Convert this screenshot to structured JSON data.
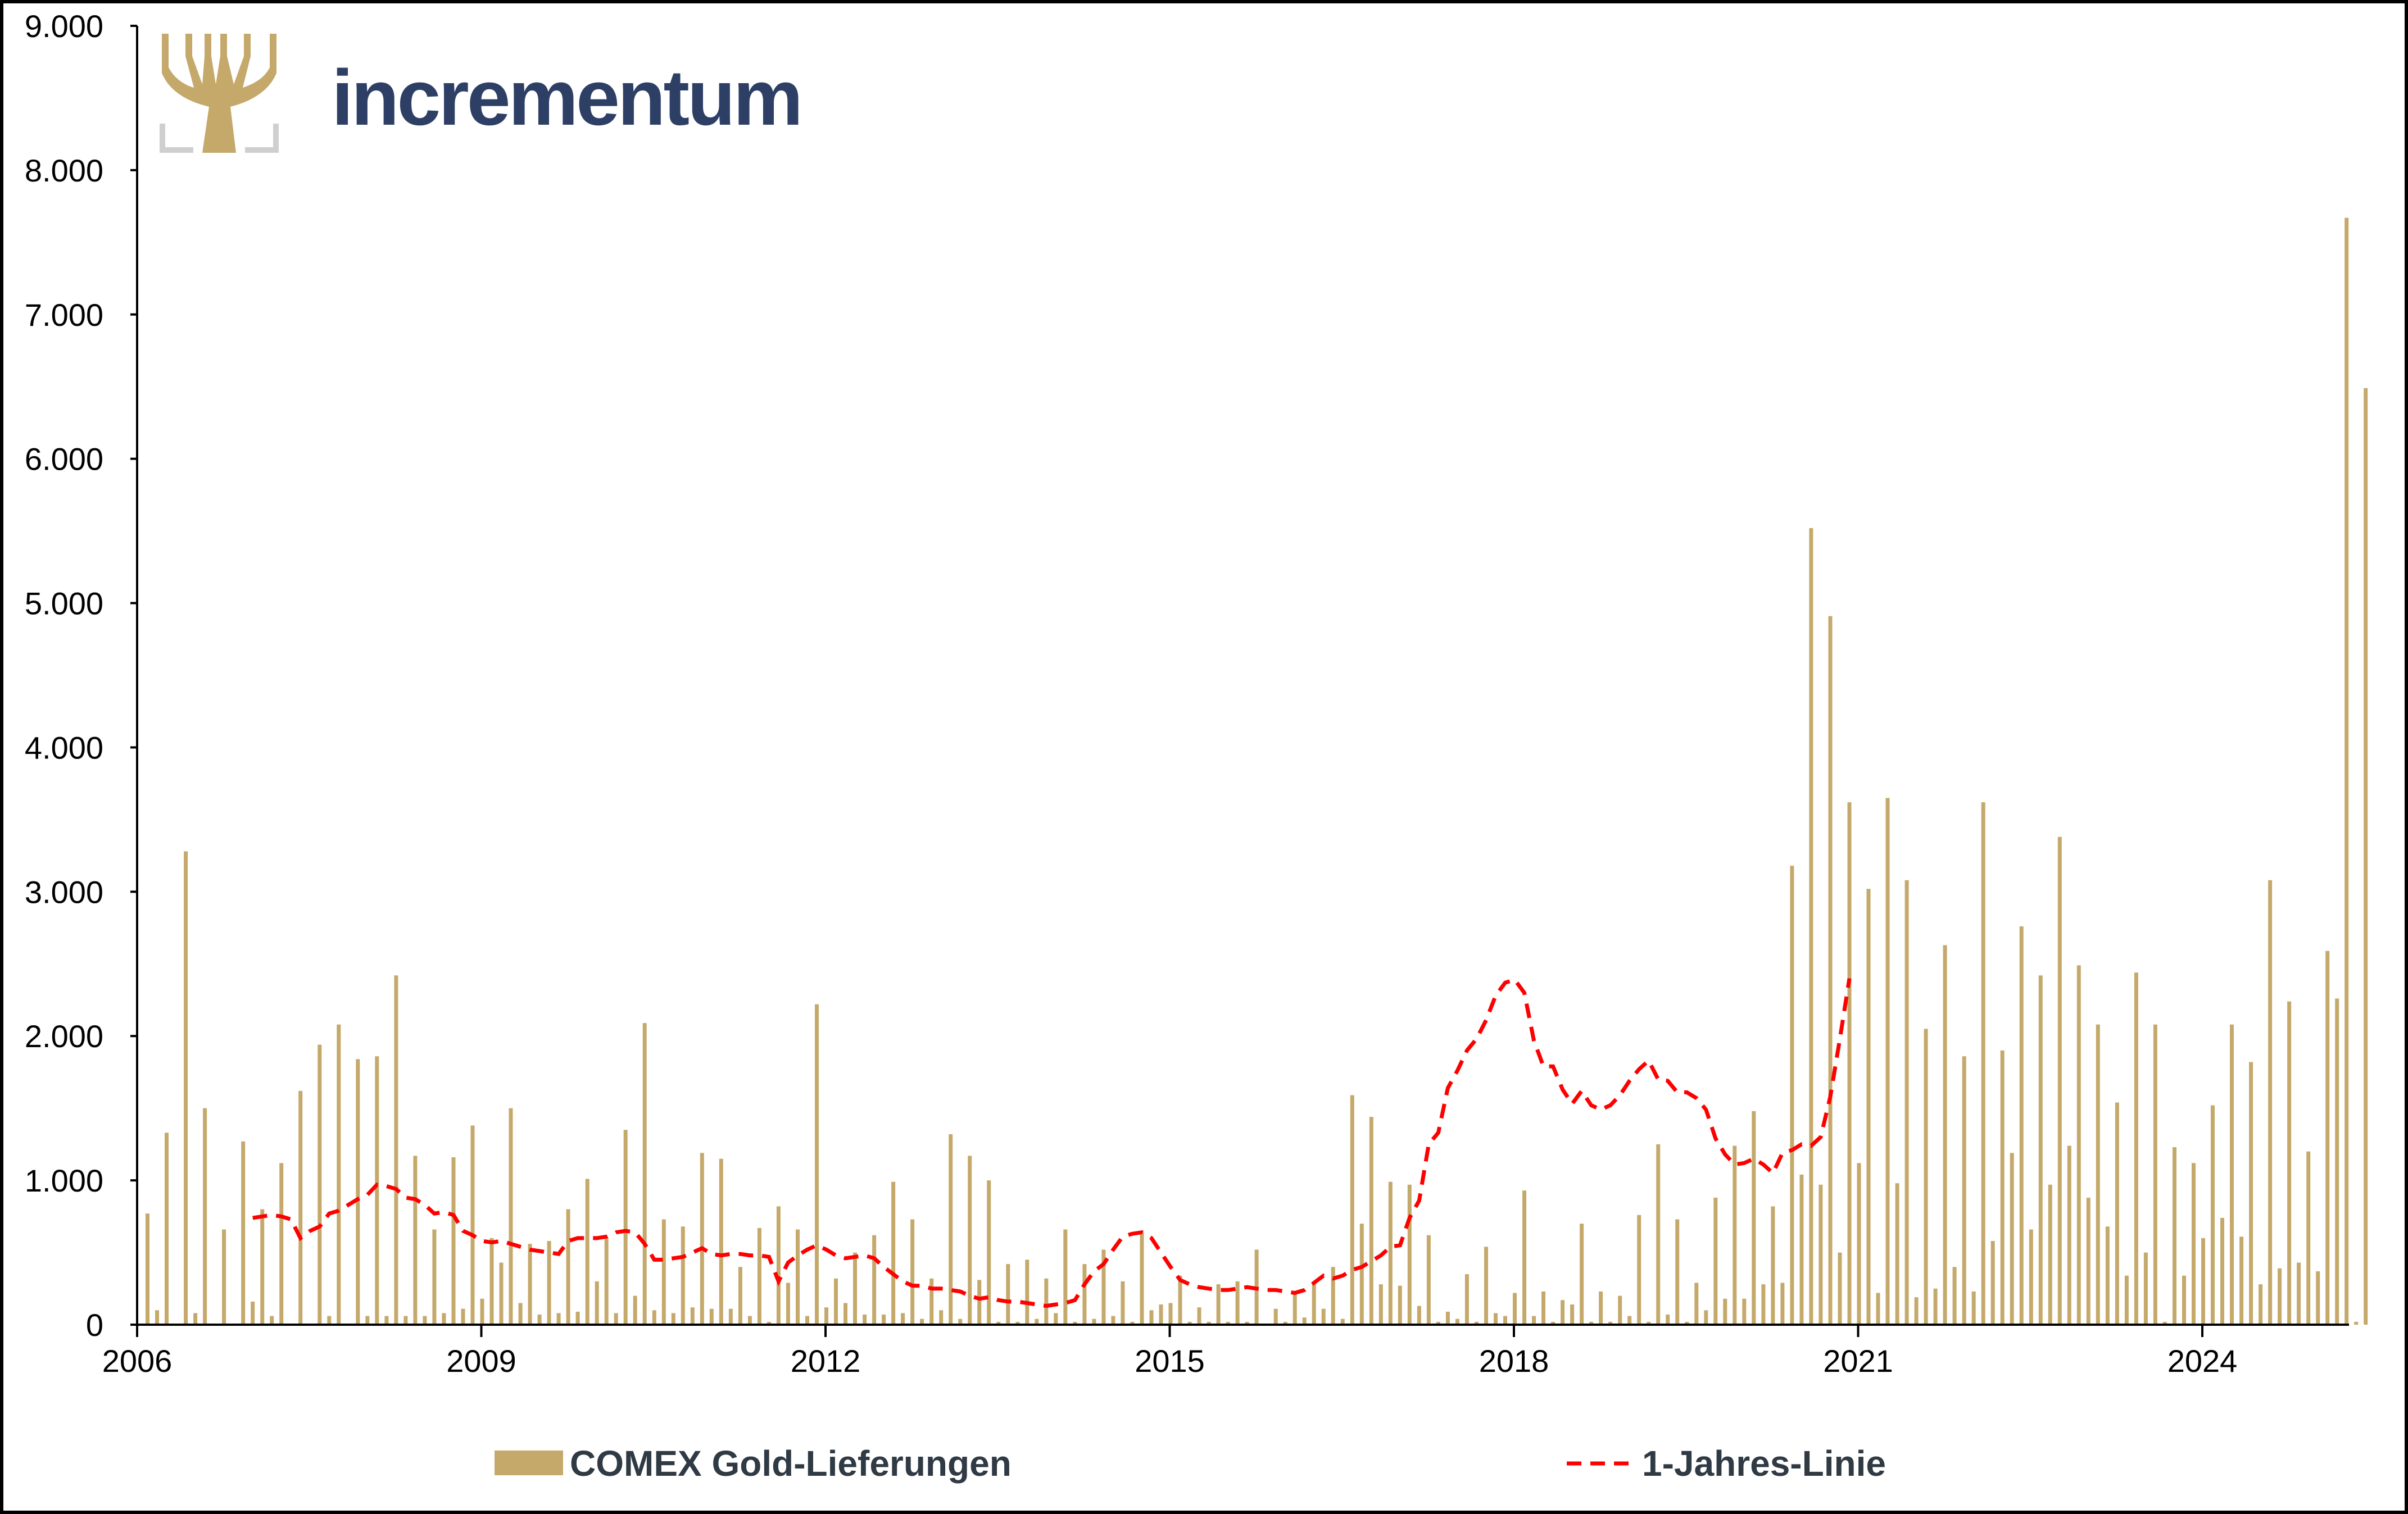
{
  "brand": {
    "name": "incrementum",
    "logo_icon": "tree-icon"
  },
  "colors": {
    "bar": "#c4a96b",
    "line": "#ff0000",
    "axis": "#000000",
    "brand": "#2e3f66",
    "logo_gold": "#c4a96b",
    "logo_frame": "#cfcfcf"
  },
  "chart_data": {
    "type": "bar",
    "title": "",
    "xlabel": "",
    "ylabel": "",
    "ylim": [
      0,
      9000
    ],
    "y_ticks": [
      "0",
      "1.000",
      "2.000",
      "3.000",
      "4.000",
      "5.000",
      "6.000",
      "7.000",
      "8.000",
      "9.000"
    ],
    "x_ticks": [
      "2006",
      "2009",
      "2012",
      "2015",
      "2018",
      "2021",
      "2024"
    ],
    "x_start": "2006-01",
    "grid": false,
    "legend_position": "bottom",
    "series": [
      {
        "name": "COMEX Gold-Lieferungen",
        "type": "bar",
        "values": [
          770,
          100,
          1330,
          0,
          3280,
          80,
          1500,
          0,
          660,
          0,
          1270,
          160,
          800,
          60,
          1120,
          0,
          1620,
          0,
          1940,
          60,
          2080,
          0,
          1840,
          60,
          1860,
          60,
          2420,
          60,
          1170,
          60,
          660,
          80,
          1160,
          110,
          1380,
          180,
          600,
          430,
          1500,
          150,
          560,
          70,
          580,
          80,
          800,
          90,
          1010,
          300,
          600,
          80,
          1350,
          200,
          2090,
          100,
          730,
          80,
          680,
          120,
          1190,
          110,
          1150,
          110,
          400,
          60,
          670,
          20,
          820,
          290,
          660,
          60,
          2220,
          120,
          320,
          150,
          500,
          70,
          620,
          70,
          990,
          80,
          730,
          40,
          320,
          100,
          1320,
          40,
          1170,
          310,
          1000,
          20,
          420,
          20,
          450,
          40,
          320,
          80,
          660,
          20,
          420,
          40,
          520,
          60,
          300,
          20,
          640,
          100,
          140,
          150,
          340,
          20,
          120,
          20,
          280,
          20,
          300,
          20,
          520,
          0,
          110,
          20,
          230,
          50,
          290,
          110,
          400,
          40,
          1590,
          700,
          1440,
          280,
          990,
          270,
          970,
          130,
          620,
          20,
          90,
          40,
          350,
          20,
          540,
          80,
          60,
          220,
          930,
          60,
          230,
          20,
          170,
          140,
          700,
          20,
          230,
          20,
          200,
          60,
          760,
          20,
          1250,
          70,
          730,
          20,
          290,
          100,
          880,
          180,
          1240,
          180,
          1480,
          280,
          820,
          290,
          3180,
          1040,
          5520,
          970,
          4910,
          500,
          3620,
          1120,
          3020,
          220,
          3650,
          980,
          3080,
          190,
          2050,
          250,
          2630,
          400,
          1860,
          230,
          3620,
          580,
          1900,
          1190,
          2760,
          660,
          2420,
          970,
          3380,
          1240,
          2490,
          880,
          2080,
          680,
          1540,
          340,
          2440,
          500,
          2080,
          20,
          1230,
          340,
          1120,
          600,
          1520,
          740,
          2080,
          610,
          1820,
          280,
          3080,
          390,
          2240,
          430,
          1200,
          370,
          2590,
          2260,
          7670,
          20,
          6490
        ]
      },
      {
        "name": "1-Jahres-Linie",
        "type": "line",
        "style": "dashed",
        "start_index": 11,
        "values": [
          740,
          750,
          760,
          750,
          730,
          600,
          650,
          680,
          770,
          790,
          830,
          870,
          900,
          970,
          960,
          940,
          880,
          870,
          830,
          770,
          780,
          760,
          650,
          620,
          580,
          570,
          580,
          560,
          540,
          520,
          510,
          500,
          490,
          580,
          600,
          600,
          600,
          610,
          640,
          650,
          640,
          560,
          450,
          450,
          460,
          470,
          500,
          530,
          490,
          480,
          490,
          490,
          480,
          480,
          470,
          300,
          430,
          480,
          520,
          550,
          520,
          480,
          460,
          470,
          480,
          460,
          400,
          350,
          300,
          270,
          270,
          250,
          250,
          240,
          230,
          200,
          180,
          190,
          170,
          160,
          160,
          150,
          140,
          130,
          140,
          150,
          170,
          280,
          370,
          420,
          520,
          610,
          630,
          640,
          600,
          500,
          400,
          310,
          280,
          260,
          250,
          240,
          240,
          250,
          260,
          250,
          240,
          240,
          230,
          220,
          240,
          290,
          340,
          320,
          340,
          380,
          400,
          440,
          480,
          540,
          550,
          740,
          860,
          1250,
          1330,
          1640,
          1760,
          1900,
          1980,
          2110,
          2280,
          2370,
          2390,
          2300,
          1970,
          1790,
          1790,
          1630,
          1530,
          1620,
          1520,
          1490,
          1520,
          1590,
          1690,
          1770,
          1830,
          1700,
          1690,
          1610,
          1610,
          1570,
          1490,
          1290,
          1180,
          1110,
          1120,
          1150,
          1110,
          1050,
          1190,
          1210,
          1250,
          1240,
          1300,
          1580,
          1980,
          2400
        ]
      }
    ]
  }
}
